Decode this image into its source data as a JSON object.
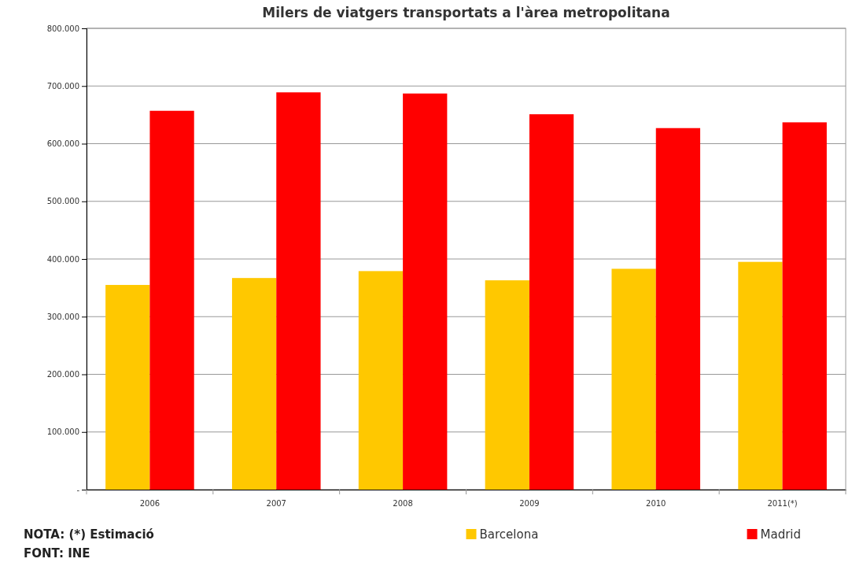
{
  "chart_data": {
    "type": "bar",
    "title": "Milers de viatgers transportats a l'àrea metropolitana",
    "categories": [
      "2006",
      "2007",
      "2008",
      "2009",
      "2010",
      "2011(*)"
    ],
    "series": [
      {
        "name": "Barcelona",
        "color": "#ffc800",
        "values": [
          355,
          367,
          379,
          363,
          383,
          395
        ]
      },
      {
        "name": "Madrid",
        "color": "#ff0000",
        "values": [
          657,
          689,
          687,
          651,
          627,
          637
        ]
      }
    ],
    "ylim": [
      0,
      800
    ],
    "yticks": [
      {
        "value": 0,
        "label": "-"
      },
      {
        "value": 100,
        "label": "100.000"
      },
      {
        "value": 200,
        "label": "200.000"
      },
      {
        "value": 300,
        "label": "300.000"
      },
      {
        "value": 400,
        "label": "400.000"
      },
      {
        "value": 500,
        "label": "500.000"
      },
      {
        "value": 600,
        "label": "600.000"
      },
      {
        "value": 700,
        "label": "700.000"
      },
      {
        "value": 800,
        "label": "800.000"
      }
    ],
    "grid": "y",
    "legend": "bottom",
    "annotations": [
      "NOTA: (*) Estimació",
      "FONT: INE"
    ]
  }
}
